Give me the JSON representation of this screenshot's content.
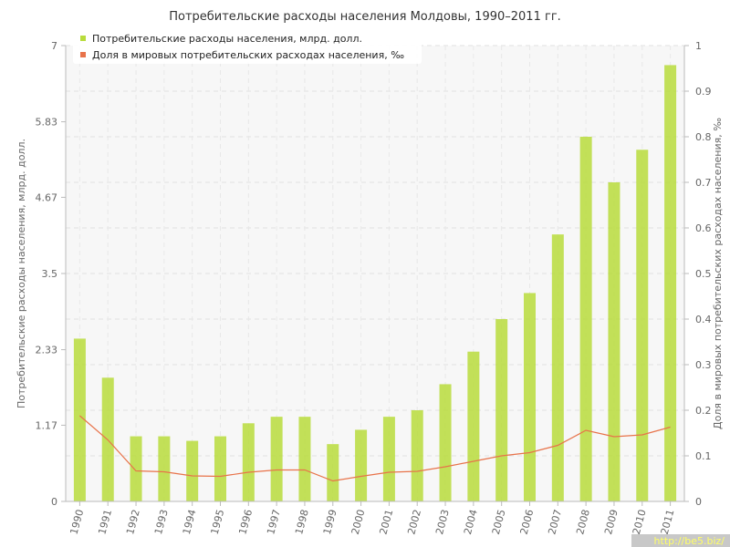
{
  "chart_data": {
    "type": "bar",
    "title": "Потребительские расходы населения Молдовы, 1990–2011 гг.",
    "categories": [
      "1990",
      "1991",
      "1992",
      "1993",
      "1994",
      "1995",
      "1996",
      "1997",
      "1998",
      "1999",
      "2000",
      "2001",
      "2002",
      "2003",
      "2004",
      "2005",
      "2006",
      "2007",
      "2008",
      "2009",
      "2010",
      "2011"
    ],
    "series": [
      {
        "name": "Потребительские расходы населения, млрд. долл.",
        "type": "bar",
        "axis": "left",
        "color": "#b8dc3c",
        "values": [
          2.5,
          1.9,
          1.0,
          1.0,
          0.93,
          1.0,
          1.2,
          1.3,
          1.3,
          0.88,
          1.1,
          1.3,
          1.4,
          1.8,
          2.3,
          2.8,
          3.2,
          4.1,
          5.6,
          4.9,
          5.4,
          6.7
        ]
      },
      {
        "name": "Доля в мировых потребительских расходах населения, ‰",
        "type": "line",
        "axis": "right",
        "color": "#e8734a",
        "values": [
          0.188,
          0.135,
          0.067,
          0.065,
          0.056,
          0.055,
          0.064,
          0.069,
          0.069,
          0.045,
          0.055,
          0.064,
          0.066,
          0.076,
          0.088,
          0.1,
          0.107,
          0.123,
          0.156,
          0.142,
          0.146,
          0.163
        ]
      }
    ],
    "ylabel": "Потребительские расходы населения, млрд. долл.",
    "y2label": "Доля в мировых потребительских расходах населения, ‰",
    "ylim": [
      0,
      7
    ],
    "y2lim": [
      0,
      1
    ],
    "yticks": [
      "0",
      "1.17",
      "2.33",
      "3.5",
      "4.67",
      "5.83",
      "7"
    ],
    "y2ticks": [
      "0",
      "0.1",
      "0.2",
      "0.3",
      "0.4",
      "0.5",
      "0.6",
      "0.7",
      "0.8",
      "0.9",
      "1"
    ],
    "grid": true,
    "legend_position": "top-left"
  },
  "watermark": "http://be5.biz/"
}
